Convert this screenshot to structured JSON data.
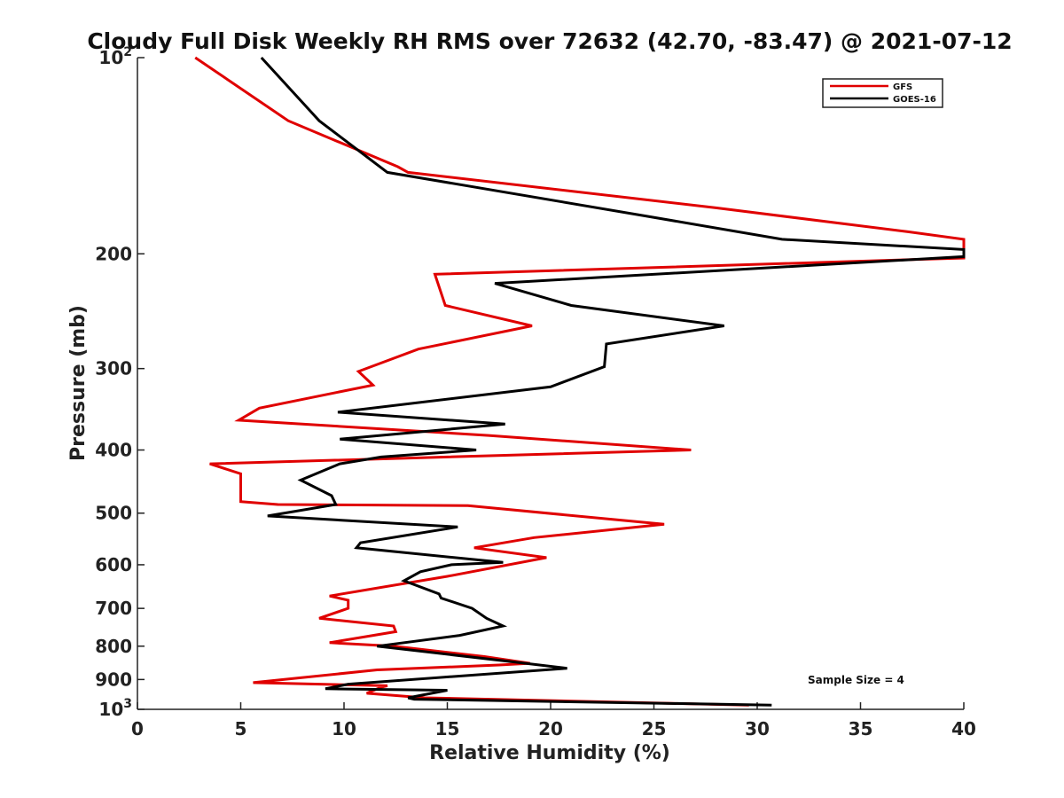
{
  "chart_data": {
    "type": "line",
    "title": "Cloudy Full Disk Weekly RH RMS over 72632 (42.70, -83.47) @ 2021-07-12",
    "xlabel": "Relative Humidity (%)",
    "ylabel": "Pressure (mb)",
    "xlim": [
      0,
      40
    ],
    "ylim": [
      100,
      1000
    ],
    "y_scale": "log",
    "y_reversed": true,
    "grid": false,
    "legend_position": "top-right",
    "x_ticks": [
      0,
      5,
      10,
      15,
      20,
      25,
      30,
      35,
      40
    ],
    "x_tick_labels": [
      "0",
      "5",
      "10",
      "15",
      "20",
      "25",
      "30",
      "35",
      "40"
    ],
    "y_ticks": [
      100,
      200,
      300,
      400,
      500,
      600,
      700,
      800,
      900,
      1000
    ],
    "y_tick_labels": [
      {
        "base": "10",
        "exp": "2"
      },
      {
        "base": "200",
        "exp": ""
      },
      {
        "base": "300",
        "exp": ""
      },
      {
        "base": "400",
        "exp": ""
      },
      {
        "base": "500",
        "exp": ""
      },
      {
        "base": "600",
        "exp": ""
      },
      {
        "base": "700",
        "exp": ""
      },
      {
        "base": "800",
        "exp": ""
      },
      {
        "base": "900",
        "exp": ""
      },
      {
        "base": "10",
        "exp": "3"
      }
    ],
    "annotation": "Sample Size = 4",
    "series": [
      {
        "name": "GFS",
        "color": "#e00000",
        "points": [
          [
            2.8,
            100
          ],
          [
            7.3,
            125
          ],
          [
            12.6,
            147
          ],
          [
            13.1,
            150
          ],
          [
            28,
            170
          ],
          [
            37.3,
            185
          ],
          [
            40,
            190
          ],
          [
            40,
            203
          ],
          [
            14.4,
            215
          ],
          [
            14.9,
            240
          ],
          [
            19.1,
            258
          ],
          [
            13.6,
            280
          ],
          [
            10.7,
            303
          ],
          [
            11.4,
            318
          ],
          [
            5.9,
            345
          ],
          [
            4.9,
            360
          ],
          [
            17,
            380
          ],
          [
            26.8,
            400
          ],
          [
            3.5,
            420
          ],
          [
            5,
            435
          ],
          [
            5,
            480
          ],
          [
            6.8,
            485
          ],
          [
            16,
            487
          ],
          [
            25.5,
            520
          ],
          [
            19.2,
            545
          ],
          [
            16.3,
            565
          ],
          [
            19.8,
            585
          ],
          [
            15,
            625
          ],
          [
            9.3,
            670
          ],
          [
            10.2,
            680
          ],
          [
            10.2,
            700
          ],
          [
            8.8,
            725
          ],
          [
            12.4,
            745
          ],
          [
            12.5,
            760
          ],
          [
            9.3,
            790
          ],
          [
            12.4,
            800
          ],
          [
            16.8,
            830
          ],
          [
            19,
            850
          ],
          [
            17.5,
            855
          ],
          [
            11.6,
            870
          ],
          [
            5.6,
            910
          ],
          [
            12.1,
            920
          ],
          [
            11.8,
            925
          ],
          [
            11.1,
            945
          ],
          [
            13.9,
            960
          ],
          [
            29.6,
            985
          ]
        ]
      },
      {
        "name": "GOES-16",
        "color": "#000000",
        "points": [
          [
            6,
            100
          ],
          [
            8.8,
            125
          ],
          [
            12.1,
            150
          ],
          [
            24.6,
            175
          ],
          [
            31.2,
            190
          ],
          [
            40,
            197
          ],
          [
            40,
            202
          ],
          [
            17.3,
            222
          ],
          [
            21,
            240
          ],
          [
            28.4,
            258
          ],
          [
            22.7,
            275
          ],
          [
            22.6,
            298
          ],
          [
            20,
            320
          ],
          [
            9.7,
            350
          ],
          [
            17.8,
            365
          ],
          [
            9.8,
            385
          ],
          [
            16.4,
            400
          ],
          [
            11.8,
            410
          ],
          [
            9.8,
            420
          ],
          [
            7.9,
            445
          ],
          [
            9.4,
            470
          ],
          [
            9.6,
            485
          ],
          [
            6.3,
            505
          ],
          [
            15.5,
            525
          ],
          [
            10.8,
            555
          ],
          [
            10.6,
            565
          ],
          [
            17.7,
            595
          ],
          [
            15.2,
            600
          ],
          [
            13.7,
            615
          ],
          [
            12.9,
            635
          ],
          [
            14.6,
            665
          ],
          [
            14.7,
            675
          ],
          [
            16.2,
            700
          ],
          [
            16.9,
            725
          ],
          [
            17.7,
            745
          ],
          [
            15.6,
            770
          ],
          [
            11.6,
            800
          ],
          [
            18.1,
            845
          ],
          [
            20.8,
            865
          ],
          [
            10.2,
            915
          ],
          [
            9.1,
            930
          ],
          [
            15,
            935
          ],
          [
            13.1,
            960
          ],
          [
            13.4,
            965
          ],
          [
            30.7,
            985
          ]
        ]
      }
    ]
  }
}
